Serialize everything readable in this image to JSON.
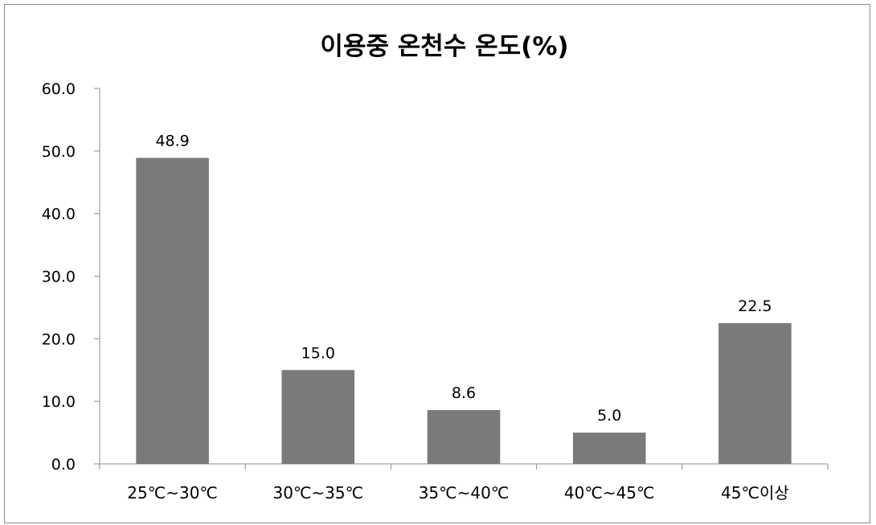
{
  "chart_data": {
    "type": "bar",
    "title": "이용중 온천수 온도(%)",
    "categories": [
      "25℃~30℃",
      "30℃~35℃",
      "35℃~40℃",
      "40℃~45℃",
      "45℃이상"
    ],
    "values": [
      48.9,
      15.0,
      8.6,
      5.0,
      22.5
    ],
    "value_labels": [
      "48.9",
      "15.0",
      "8.6",
      "5.0",
      "22.5"
    ],
    "y_ticks": [
      "0.0",
      "10.0",
      "20.0",
      "30.0",
      "40.0",
      "50.0",
      "60.0"
    ],
    "ylim": [
      0,
      60
    ],
    "xlabel": "",
    "ylabel": "",
    "grid": false,
    "legend": "none",
    "bar_color": "#7a7a7a",
    "axis_color": "#8c8c8c"
  }
}
